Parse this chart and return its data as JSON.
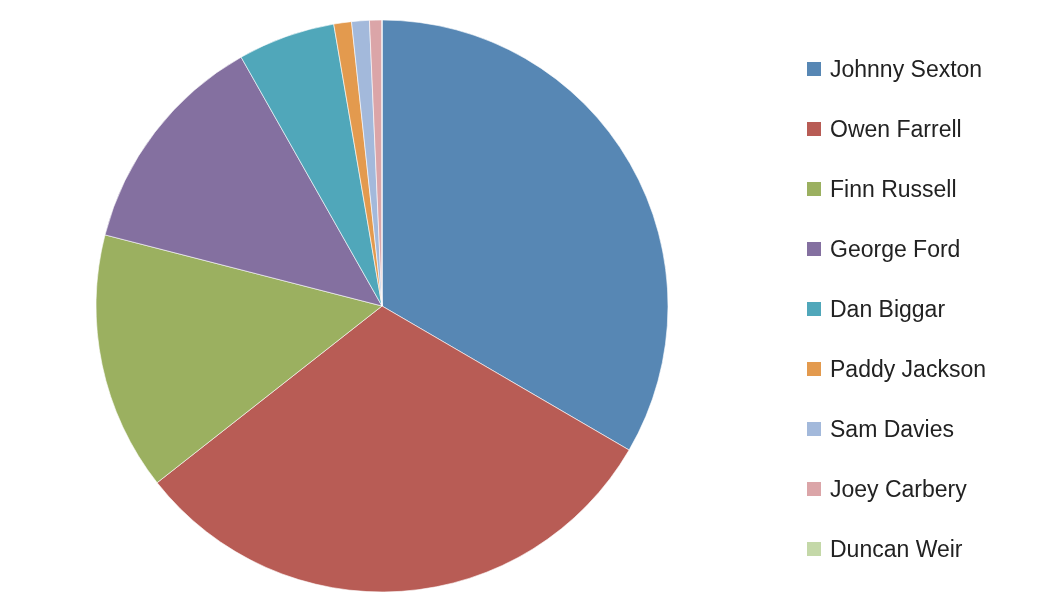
{
  "chart_data": {
    "type": "pie",
    "categories": [
      "Johnny Sexton",
      "Owen Farrell",
      "Finn Russell",
      "George Ford",
      "Dan Biggar",
      "Paddy Jackson",
      "Sam Davies",
      "Joey Carbery",
      "Duncan Weir"
    ],
    "values": [
      33.4,
      31.0,
      14.6,
      12.8,
      5.5,
      1.0,
      1.0,
      0.7,
      0
    ],
    "colors": [
      "#5787b4",
      "#b85c55",
      "#9bb060",
      "#8470a0",
      "#50a7ba",
      "#e39a4e",
      "#a3b9db",
      "#dba5a8",
      "#c4d8a8"
    ],
    "legend": "right"
  }
}
